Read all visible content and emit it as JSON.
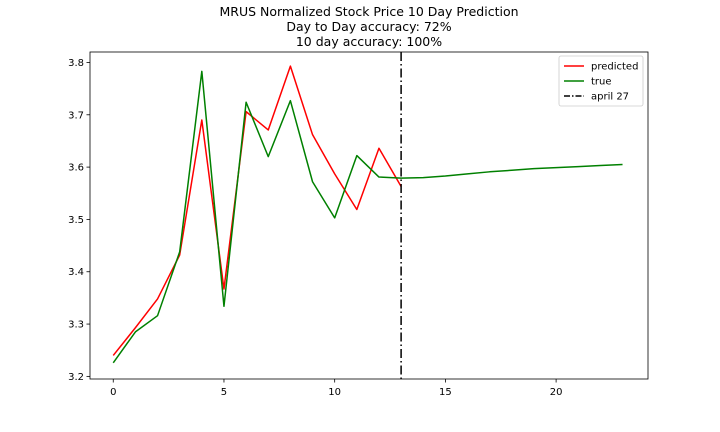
{
  "chart_data": {
    "type": "line",
    "title_lines": [
      "MRUS Normalized Stock Price 10 Day Prediction",
      "Day to Day accuracy: 72%",
      "10 day accuracy: 100%"
    ],
    "xlim": [
      -1.05,
      24.15
    ],
    "ylim": [
      3.195,
      3.82
    ],
    "xticks": [
      0,
      5,
      10,
      15,
      20
    ],
    "yticks": [
      3.2,
      3.3,
      3.4,
      3.5,
      3.6,
      3.7,
      3.8
    ],
    "xtick_labels": [
      "0",
      "5",
      "10",
      "15",
      "20"
    ],
    "ytick_labels": [
      "3.2",
      "3.3",
      "3.4",
      "3.5",
      "3.6",
      "3.7",
      "3.8"
    ],
    "series": [
      {
        "name": "predicted",
        "color": "#ff0000",
        "x": [
          0,
          1,
          2,
          3,
          4,
          5,
          6,
          7,
          8,
          9,
          10,
          11,
          12,
          13
        ],
        "y": [
          3.24,
          3.293,
          3.348,
          3.432,
          3.69,
          3.367,
          3.706,
          3.671,
          3.793,
          3.662,
          3.587,
          3.519,
          3.636,
          3.563
        ]
      },
      {
        "name": "true",
        "color": "#008000",
        "x": [
          0,
          1,
          2,
          3,
          4,
          5,
          6,
          7,
          8,
          9,
          10,
          11,
          12,
          13,
          14,
          15,
          16,
          17,
          18,
          19,
          20,
          21,
          22,
          23
        ],
        "y": [
          3.226,
          3.285,
          3.316,
          3.438,
          3.783,
          3.334,
          3.724,
          3.62,
          3.727,
          3.572,
          3.503,
          3.622,
          3.581,
          3.579,
          3.58,
          3.583,
          3.587,
          3.591,
          3.594,
          3.597,
          3.599,
          3.601,
          3.603,
          3.605
        ]
      }
    ],
    "vline": {
      "name": "april 27",
      "x": 13,
      "color": "#000000",
      "style": "dash-dot"
    },
    "legend": {
      "position": "top-right",
      "entries": [
        "predicted",
        "true",
        "april 27"
      ]
    },
    "grid": false
  }
}
